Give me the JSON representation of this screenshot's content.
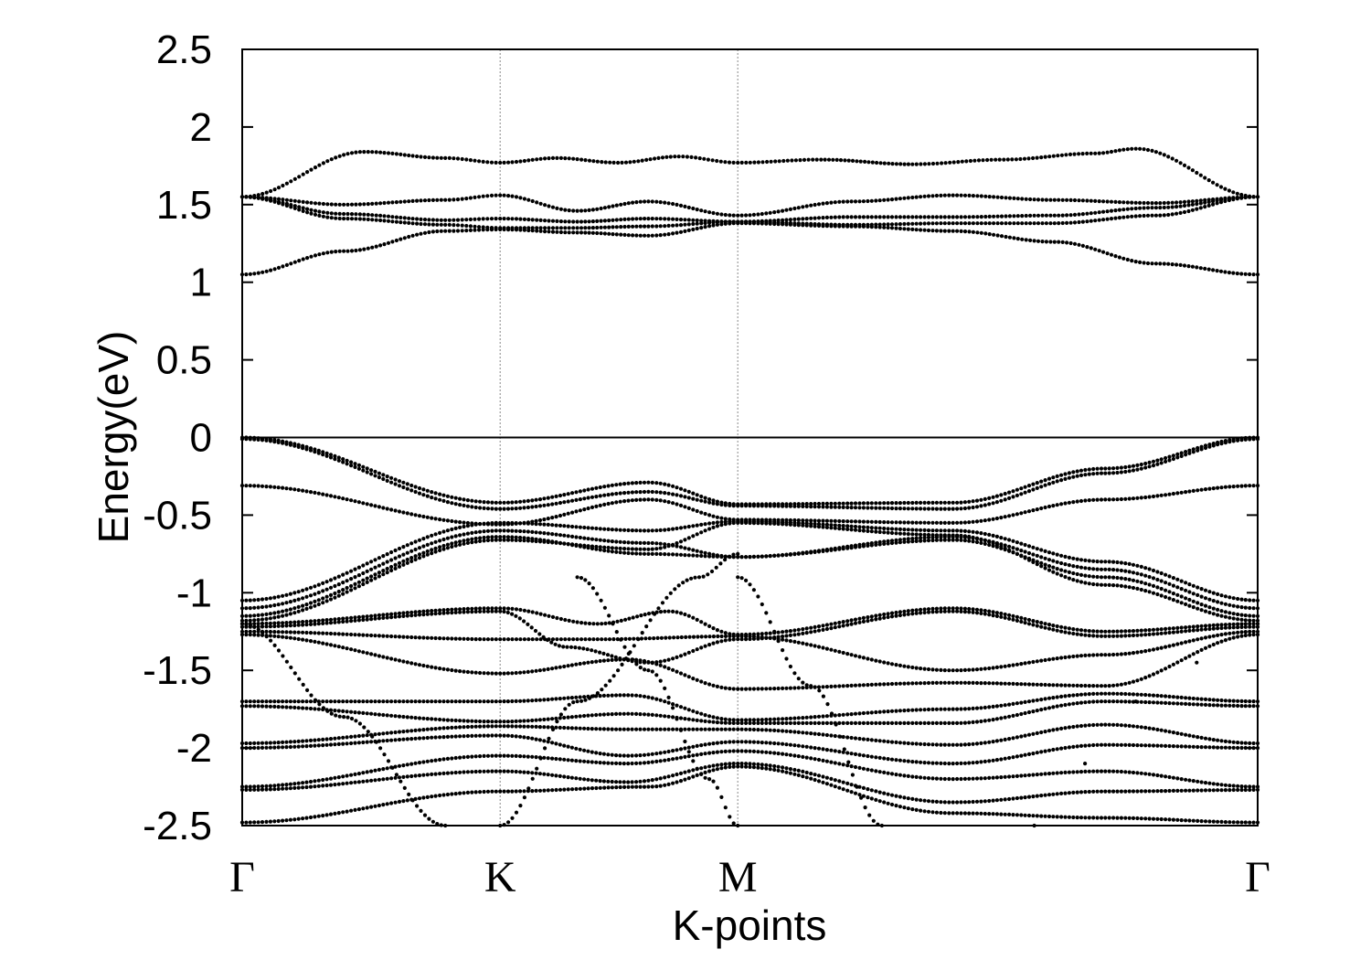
{
  "chart_data": {
    "type": "scatter",
    "title": "",
    "xlabel": "K-points",
    "ylabel": "Energy(eV)",
    "ylim": [
      -2.5,
      2.5
    ],
    "yticks": [
      "2.5",
      "2",
      "1.5",
      "1",
      "0.5",
      "0",
      "-0.5",
      "-1",
      "-1.5",
      "-2",
      "-2.5"
    ],
    "x_ticks": [
      {
        "label": "Γ",
        "x": 0
      },
      {
        "label": "K",
        "x": 0.254
      },
      {
        "label": "M",
        "x": 0.488
      },
      {
        "label": "Γ",
        "x": 1
      }
    ],
    "fermi_level": 0,
    "grid": "dashed vertical lines at K and M",
    "legend": "none",
    "marker_color": "#000000",
    "bands": [
      {
        "kind": "cb",
        "pts": [
          [
            0,
            1.55
          ],
          [
            0.12,
            1.84
          ],
          [
            0.2,
            1.8
          ],
          [
            0.254,
            1.77
          ],
          [
            0.31,
            1.8
          ],
          [
            0.37,
            1.77
          ],
          [
            0.43,
            1.81
          ],
          [
            0.488,
            1.77
          ],
          [
            0.57,
            1.79
          ],
          [
            0.66,
            1.76
          ],
          [
            0.75,
            1.79
          ],
          [
            0.84,
            1.83
          ],
          [
            0.88,
            1.86
          ],
          [
            1,
            1.55
          ]
        ]
      },
      {
        "kind": "cb",
        "pts": [
          [
            0,
            1.55
          ],
          [
            0.1,
            1.5
          ],
          [
            0.2,
            1.53
          ],
          [
            0.254,
            1.56
          ],
          [
            0.33,
            1.46
          ],
          [
            0.4,
            1.52
          ],
          [
            0.488,
            1.43
          ],
          [
            0.6,
            1.52
          ],
          [
            0.7,
            1.56
          ],
          [
            0.8,
            1.53
          ],
          [
            0.9,
            1.51
          ],
          [
            1,
            1.55
          ]
        ]
      },
      {
        "kind": "cb",
        "pts": [
          [
            0,
            1.55
          ],
          [
            0.1,
            1.44
          ],
          [
            0.2,
            1.4
          ],
          [
            0.254,
            1.41
          ],
          [
            0.33,
            1.39
          ],
          [
            0.4,
            1.41
          ],
          [
            0.488,
            1.39
          ],
          [
            0.6,
            1.42
          ],
          [
            0.7,
            1.42
          ],
          [
            0.8,
            1.43
          ],
          [
            0.9,
            1.48
          ],
          [
            1,
            1.55
          ]
        ]
      },
      {
        "kind": "cb",
        "pts": [
          [
            0,
            1.55
          ],
          [
            0.1,
            1.41
          ],
          [
            0.2,
            1.37
          ],
          [
            0.254,
            1.35
          ],
          [
            0.33,
            1.35
          ],
          [
            0.4,
            1.36
          ],
          [
            0.488,
            1.39
          ],
          [
            0.6,
            1.37
          ],
          [
            0.7,
            1.38
          ],
          [
            0.8,
            1.38
          ],
          [
            0.9,
            1.43
          ],
          [
            1,
            1.55
          ]
        ]
      },
      {
        "kind": "cb",
        "pts": [
          [
            0,
            1.05
          ],
          [
            0.1,
            1.2
          ],
          [
            0.2,
            1.33
          ],
          [
            0.254,
            1.34
          ],
          [
            0.33,
            1.32
          ],
          [
            0.4,
            1.3
          ],
          [
            0.488,
            1.38
          ],
          [
            0.6,
            1.36
          ],
          [
            0.7,
            1.33
          ],
          [
            0.8,
            1.26
          ],
          [
            0.9,
            1.12
          ],
          [
            1,
            1.05
          ]
        ]
      },
      {
        "kind": "vb",
        "pts": [
          [
            0,
            0
          ],
          [
            0.254,
            -0.42
          ],
          [
            0.4,
            -0.29
          ],
          [
            0.488,
            -0.43
          ],
          [
            0.7,
            -0.42
          ],
          [
            0.85,
            -0.2
          ],
          [
            1,
            0
          ]
        ]
      },
      {
        "kind": "vb",
        "pts": [
          [
            0,
            -0.01
          ],
          [
            0.254,
            -0.46
          ],
          [
            0.4,
            -0.35
          ],
          [
            0.488,
            -0.44
          ],
          [
            0.7,
            -0.46
          ],
          [
            0.85,
            -0.23
          ],
          [
            1,
            -0.01
          ]
        ]
      },
      {
        "kind": "vb",
        "pts": [
          [
            0,
            -0.31
          ],
          [
            0.254,
            -0.56
          ],
          [
            0.4,
            -0.4
          ],
          [
            0.488,
            -0.53
          ],
          [
            0.7,
            -0.55
          ],
          [
            0.85,
            -0.4
          ],
          [
            1,
            -0.31
          ]
        ]
      },
      {
        "kind": "vb",
        "pts": [
          [
            0,
            -1.05
          ],
          [
            0.254,
            -0.55
          ],
          [
            0.4,
            -0.6
          ],
          [
            0.488,
            -0.54
          ],
          [
            0.7,
            -0.6
          ],
          [
            0.85,
            -0.8
          ],
          [
            1,
            -1.05
          ]
        ]
      },
      {
        "kind": "vb",
        "pts": [
          [
            0,
            -1.1
          ],
          [
            0.254,
            -0.6
          ],
          [
            0.4,
            -0.68
          ],
          [
            0.488,
            -0.77
          ],
          [
            0.7,
            -0.64
          ],
          [
            0.85,
            -0.85
          ],
          [
            1,
            -1.1
          ]
        ]
      },
      {
        "kind": "vb",
        "pts": [
          [
            0,
            -1.15
          ],
          [
            0.254,
            -0.64
          ],
          [
            0.4,
            -0.75
          ],
          [
            0.488,
            -0.77
          ],
          [
            0.7,
            -0.66
          ],
          [
            0.85,
            -0.9
          ],
          [
            1,
            -1.15
          ]
        ]
      },
      {
        "kind": "vb",
        "pts": [
          [
            0,
            -1.18
          ],
          [
            0.254,
            -0.66
          ],
          [
            0.4,
            -0.72
          ],
          [
            0.488,
            -0.55
          ],
          [
            0.7,
            -0.63
          ],
          [
            0.85,
            -0.95
          ],
          [
            1,
            -1.18
          ]
        ]
      },
      {
        "kind": "vb",
        "pts": [
          [
            0,
            -1.2
          ],
          [
            0.254,
            -1.1
          ],
          [
            0.35,
            -1.2
          ],
          [
            0.42,
            -1.12
          ],
          [
            0.488,
            -1.27
          ],
          [
            0.7,
            -1.1
          ],
          [
            0.85,
            -1.25
          ],
          [
            1,
            -1.2
          ]
        ]
      },
      {
        "kind": "vb",
        "pts": [
          [
            0,
            -1.22
          ],
          [
            0.254,
            -1.12
          ],
          [
            0.32,
            -1.35
          ],
          [
            0.4,
            -1.45
          ],
          [
            0.488,
            -1.3
          ],
          [
            0.7,
            -1.12
          ],
          [
            0.85,
            -1.28
          ],
          [
            1,
            -1.22
          ]
        ]
      },
      {
        "kind": "vb",
        "pts": [
          [
            0,
            -1.25
          ],
          [
            0.254,
            -1.3
          ],
          [
            0.35,
            -1.3
          ],
          [
            0.488,
            -1.28
          ],
          [
            0.7,
            -1.5
          ],
          [
            0.85,
            -1.4
          ],
          [
            1,
            -1.25
          ]
        ]
      },
      {
        "kind": "vb",
        "pts": [
          [
            0,
            -1.27
          ],
          [
            0.254,
            -1.52
          ],
          [
            0.38,
            -1.43
          ],
          [
            0.488,
            -1.62
          ],
          [
            0.7,
            -1.58
          ],
          [
            0.85,
            -1.6
          ],
          [
            1,
            -1.27
          ]
        ]
      },
      {
        "kind": "vb",
        "pts": [
          [
            0,
            -1.7
          ],
          [
            0.254,
            -1.7
          ],
          [
            0.38,
            -1.66
          ],
          [
            0.488,
            -1.82
          ],
          [
            0.7,
            -1.75
          ],
          [
            0.85,
            -1.65
          ],
          [
            1,
            -1.7
          ]
        ]
      },
      {
        "kind": "vb",
        "pts": [
          [
            0,
            -1.73
          ],
          [
            0.254,
            -1.83
          ],
          [
            0.38,
            -1.78
          ],
          [
            0.488,
            -1.84
          ],
          [
            0.7,
            -1.84
          ],
          [
            0.85,
            -1.7
          ],
          [
            1,
            -1.73
          ]
        ]
      },
      {
        "kind": "vb",
        "pts": [
          [
            0,
            -1.97
          ],
          [
            0.254,
            -1.86
          ],
          [
            0.38,
            -1.88
          ],
          [
            0.488,
            -1.88
          ],
          [
            0.7,
            -1.98
          ],
          [
            0.85,
            -1.85
          ],
          [
            1,
            -1.97
          ]
        ]
      },
      {
        "kind": "vb",
        "pts": [
          [
            0,
            -2.0
          ],
          [
            0.254,
            -1.92
          ],
          [
            0.38,
            -2.05
          ],
          [
            0.488,
            -1.96
          ],
          [
            0.7,
            -2.1
          ],
          [
            0.85,
            -1.98
          ],
          [
            1,
            -2.0
          ]
        ]
      },
      {
        "kind": "vb",
        "pts": [
          [
            0,
            -2.25
          ],
          [
            0.254,
            -2.05
          ],
          [
            0.38,
            -2.1
          ],
          [
            0.488,
            -2.02
          ],
          [
            0.7,
            -2.2
          ],
          [
            0.85,
            -2.15
          ],
          [
            1,
            -2.25
          ]
        ]
      },
      {
        "kind": "vb",
        "pts": [
          [
            0,
            -2.27
          ],
          [
            0.254,
            -2.15
          ],
          [
            0.38,
            -2.22
          ],
          [
            0.488,
            -2.1
          ],
          [
            0.7,
            -2.35
          ],
          [
            0.85,
            -2.28
          ],
          [
            1,
            -2.27
          ]
        ]
      },
      {
        "kind": "vb",
        "pts": [
          [
            0,
            -2.48
          ],
          [
            0.254,
            -2.28
          ],
          [
            0.4,
            -2.25
          ],
          [
            0.488,
            -2.12
          ],
          [
            0.7,
            -2.42
          ],
          [
            0.85,
            -2.45
          ],
          [
            1,
            -2.48
          ]
        ]
      },
      {
        "kind": "vb",
        "pts": [
          [
            0,
            -1.2
          ],
          [
            0.1,
            -1.8
          ],
          [
            0.2,
            -2.5
          ]
        ]
      },
      {
        "kind": "vb",
        "pts": [
          [
            0.254,
            -2.5
          ],
          [
            0.33,
            -1.7
          ],
          [
            0.45,
            -0.9
          ],
          [
            0.488,
            -0.75
          ]
        ]
      },
      {
        "kind": "vb",
        "pts": [
          [
            0.488,
            -0.9
          ],
          [
            0.56,
            -1.6
          ],
          [
            0.63,
            -2.5
          ]
        ]
      },
      {
        "kind": "vb",
        "pts": [
          [
            1,
            -1.2
          ],
          [
            0.88,
            -1.7
          ],
          [
            0.78,
            -2.5
          ]
        ]
      },
      {
        "kind": "vb",
        "pts": [
          [
            0.33,
            -0.9
          ],
          [
            0.4,
            -1.5
          ],
          [
            0.46,
            -2.2
          ],
          [
            0.488,
            -2.5
          ]
        ]
      }
    ]
  }
}
